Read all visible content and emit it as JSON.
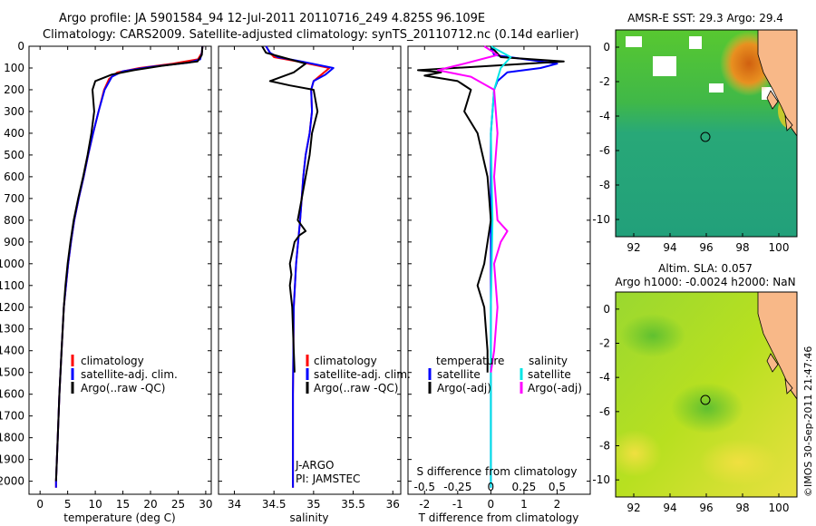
{
  "header": {
    "line1": "Argo profile: JA 5901584_94 12-Jul-2011 20110716_249 4.825S 96.109E",
    "line2": "Climatology: CARS2009. Satellite-adjusted climatology: synTS_20110712.nc (0.14d earlier)"
  },
  "colors": {
    "climatology": "#ff0000",
    "satellite": "#0000ff",
    "argo": "#000000",
    "sal_satellite": "#00e5e5",
    "sal_argo": "#ff00ff",
    "land": "#f8b888"
  },
  "depth_ticks": [
    "0",
    "100",
    "200",
    "300",
    "400",
    "500",
    "600",
    "700",
    "800",
    "900",
    "1000",
    "1100",
    "1200",
    "1300",
    "1400",
    "1500",
    "1600",
    "1700",
    "1800",
    "1900",
    "2000"
  ],
  "chart_data": [
    {
      "id": "temperature",
      "type": "line",
      "xlabel": "temperature (deg C)",
      "ylabel": "",
      "xlim": [
        -2,
        31
      ],
      "ylim": [
        2060,
        0
      ],
      "xticks": [
        "0",
        "5",
        "10",
        "15",
        "20",
        "25",
        "30"
      ],
      "legend": {
        "placement": "lower-center",
        "entries": [
          "climatology",
          "satellite-adj. clim.",
          "Argo(..raw -QC)"
        ]
      },
      "series": [
        {
          "name": "climatology",
          "color": "#ff0000",
          "points": [
            [
              29.4,
              0
            ],
            [
              29.3,
              30
            ],
            [
              28.6,
              60
            ],
            [
              24,
              80
            ],
            [
              18,
              100
            ],
            [
              14,
              120
            ],
            [
              12.5,
              150
            ],
            [
              11.6,
              200
            ],
            [
              10.6,
              300
            ],
            [
              9.6,
              400
            ],
            [
              8.7,
              500
            ],
            [
              7.9,
              600
            ],
            [
              7.0,
              700
            ],
            [
              6.2,
              800
            ],
            [
              5.6,
              900
            ],
            [
              5.1,
              1000
            ],
            [
              4.7,
              1100
            ],
            [
              4.3,
              1200
            ],
            [
              3.9,
              1400
            ],
            [
              3.5,
              1600
            ],
            [
              3.2,
              1800
            ],
            [
              2.9,
              2000
            ],
            [
              2.9,
              2030
            ]
          ]
        },
        {
          "name": "satellite-adj. clim.",
          "color": "#0000ff",
          "points": [
            [
              29.4,
              0
            ],
            [
              29.3,
              30
            ],
            [
              29.0,
              60
            ],
            [
              27,
              75
            ],
            [
              20,
              95
            ],
            [
              15,
              115
            ],
            [
              13,
              140
            ],
            [
              11.7,
              200
            ],
            [
              10.6,
              300
            ],
            [
              9.6,
              400
            ],
            [
              8.7,
              500
            ],
            [
              7.9,
              600
            ],
            [
              7.0,
              700
            ],
            [
              6.2,
              800
            ],
            [
              5.6,
              900
            ],
            [
              5.1,
              1000
            ],
            [
              4.7,
              1100
            ],
            [
              4.3,
              1200
            ],
            [
              3.9,
              1400
            ],
            [
              3.5,
              1600
            ],
            [
              3.2,
              1800
            ],
            [
              2.9,
              2000
            ],
            [
              2.9,
              2030
            ]
          ]
        },
        {
          "name": "Argo(..raw -QC)",
          "color": "#000000",
          "points": [
            [
              29.4,
              0
            ],
            [
              29.3,
              40
            ],
            [
              28.5,
              70
            ],
            [
              22,
              90
            ],
            [
              17,
              110
            ],
            [
              13,
              130
            ],
            [
              10,
              160
            ],
            [
              9.5,
              200
            ],
            [
              9.8,
              300
            ],
            [
              9.3,
              400
            ],
            [
              8.6,
              500
            ],
            [
              7.8,
              600
            ],
            [
              6.9,
              700
            ],
            [
              6.1,
              800
            ],
            [
              5.5,
              900
            ],
            [
              5.0,
              1000
            ],
            [
              4.6,
              1100
            ],
            [
              4.3,
              1200
            ],
            [
              3.9,
              1400
            ],
            [
              3.5,
              1600
            ],
            [
              3.2,
              1800
            ],
            [
              2.9,
              2000
            ]
          ]
        }
      ]
    },
    {
      "id": "salinity",
      "type": "line",
      "xlabel": "salinity",
      "ylabel": "",
      "xlim": [
        33.8,
        36.1
      ],
      "ylim": [
        2060,
        0
      ],
      "xticks": [
        "34",
        "34.5",
        "35",
        "35.5",
        "36"
      ],
      "legend": {
        "placement": "lower-center",
        "entries": [
          "climatology",
          "satellite-adj. clim.",
          "Argo(..raw -QC)"
        ]
      },
      "annotations": [
        "J-ARGO",
        "PI: JAMSTEC"
      ],
      "series": [
        {
          "name": "climatology",
          "color": "#ff0000",
          "points": [
            [
              34.4,
              0
            ],
            [
              34.45,
              30
            ],
            [
              34.5,
              50
            ],
            [
              34.8,
              70
            ],
            [
              35.2,
              100
            ],
            [
              35.1,
              130
            ],
            [
              35.0,
              160
            ],
            [
              34.97,
              200
            ],
            [
              34.98,
              300
            ],
            [
              34.95,
              400
            ],
            [
              34.9,
              500
            ],
            [
              34.87,
              600
            ],
            [
              34.83,
              800
            ],
            [
              34.78,
              1000
            ],
            [
              34.75,
              1200
            ],
            [
              34.74,
              1600
            ],
            [
              34.74,
              2030
            ]
          ]
        },
        {
          "name": "satellite-adj. clim.",
          "color": "#0000ff",
          "points": [
            [
              34.4,
              0
            ],
            [
              34.45,
              30
            ],
            [
              34.55,
              50
            ],
            [
              34.85,
              70
            ],
            [
              35.25,
              100
            ],
            [
              35.15,
              130
            ],
            [
              35.0,
              160
            ],
            [
              34.97,
              200
            ],
            [
              34.98,
              300
            ],
            [
              34.95,
              400
            ],
            [
              34.9,
              500
            ],
            [
              34.87,
              600
            ],
            [
              34.83,
              800
            ],
            [
              34.78,
              1000
            ],
            [
              34.75,
              1200
            ],
            [
              34.74,
              1600
            ],
            [
              34.74,
              2030
            ]
          ]
        },
        {
          "name": "Argo(..raw -QC)",
          "color": "#000000",
          "points": [
            [
              34.35,
              0
            ],
            [
              34.4,
              30
            ],
            [
              34.6,
              50
            ],
            [
              34.9,
              80
            ],
            [
              34.75,
              120
            ],
            [
              34.45,
              160
            ],
            [
              34.7,
              180
            ],
            [
              35.0,
              200
            ],
            [
              35.05,
              300
            ],
            [
              34.98,
              400
            ],
            [
              34.95,
              500
            ],
            [
              34.9,
              600
            ],
            [
              34.85,
              700
            ],
            [
              34.8,
              800
            ],
            [
              34.9,
              850
            ],
            [
              34.82,
              870
            ],
            [
              34.76,
              900
            ],
            [
              34.7,
              1000
            ],
            [
              34.72,
              1050
            ],
            [
              34.7,
              1100
            ],
            [
              34.73,
              1200
            ],
            [
              34.74,
              1300
            ],
            [
              34.75,
              1400
            ],
            [
              34.76,
              1500
            ]
          ]
        }
      ]
    },
    {
      "id": "difference",
      "type": "line",
      "xlabel": "T difference from climatology",
      "xlabel_top": "S difference from climatology",
      "xlim": [
        -2.5,
        3.0
      ],
      "ylim": [
        2060,
        0
      ],
      "xticks": [
        "-2",
        "-1",
        "0",
        "1",
        "2"
      ],
      "xticks_top": [
        "-0.5",
        "-0.25",
        "0",
        "0.25",
        "0.5"
      ],
      "legend": {
        "placement": "lower-center",
        "headers": [
          "temperature",
          "salinity"
        ],
        "entries": [
          "satellite",
          "Argo(-adj)",
          "satellite",
          "Argo(-adj)"
        ]
      },
      "series": [
        {
          "name": "temperature satellite",
          "color": "#0000ff",
          "points": [
            [
              0,
              0
            ],
            [
              0.1,
              40
            ],
            [
              2.0,
              80
            ],
            [
              1.5,
              100
            ],
            [
              0.5,
              120
            ],
            [
              0.2,
              160
            ],
            [
              0.1,
              200
            ],
            [
              0,
              400
            ],
            [
              0,
              2030
            ]
          ]
        },
        {
          "name": "temperature Argo(-adj)",
          "color": "#000000",
          "points": [
            [
              0,
              0
            ],
            [
              0.3,
              50
            ],
            [
              2.2,
              70
            ],
            [
              -2.2,
              110
            ],
            [
              -1.5,
              120
            ],
            [
              -2.0,
              135
            ],
            [
              -1.0,
              160
            ],
            [
              -0.6,
              200
            ],
            [
              -0.8,
              300
            ],
            [
              -0.4,
              400
            ],
            [
              -0.1,
              600
            ],
            [
              0,
              800
            ],
            [
              -0.2,
              1000
            ],
            [
              -0.4,
              1100
            ],
            [
              -0.2,
              1200
            ],
            [
              -0.1,
              1400
            ],
            [
              -0.1,
              1500
            ]
          ]
        },
        {
          "name": "salinity satellite",
          "color": "#00e5e5",
          "points": [
            [
              0,
              0
            ],
            [
              0.6,
              50
            ],
            [
              0.3,
              100
            ],
            [
              0.1,
              200
            ],
            [
              0,
              400
            ],
            [
              0.05,
              800
            ],
            [
              0,
              1200
            ],
            [
              0,
              2030
            ]
          ]
        },
        {
          "name": "salinity Argo(-adj)",
          "color": "#ff00ff",
          "points": [
            [
              -0.2,
              0
            ],
            [
              0.2,
              40
            ],
            [
              -0.8,
              80
            ],
            [
              -1.6,
              110
            ],
            [
              -0.6,
              140
            ],
            [
              0.1,
              200
            ],
            [
              0.2,
              400
            ],
            [
              0.1,
              600
            ],
            [
              0.2,
              800
            ],
            [
              0.5,
              850
            ],
            [
              0.3,
              900
            ],
            [
              0.1,
              1000
            ],
            [
              0.2,
              1200
            ],
            [
              0.1,
              1400
            ],
            [
              0,
              1500
            ]
          ]
        }
      ]
    }
  ],
  "maps": {
    "sst": {
      "title": "AMSR-E SST: 29.3 Argo: 29.4",
      "xticks": [
        "92",
        "94",
        "96",
        "98",
        "100"
      ],
      "yticks": [
        "0",
        "-2",
        "-4",
        "-6",
        "-8",
        "-10"
      ],
      "marker": {
        "lon": 96.109,
        "lat": -4.825
      }
    },
    "sla": {
      "title1": "Altim. SLA: 0.057",
      "title2": "Argo h1000: -0.0024 h2000: NaN",
      "xticks": [
        "92",
        "94",
        "96",
        "98",
        "100"
      ],
      "yticks": [
        "0",
        "-2",
        "-4",
        "-6",
        "-8",
        "-10"
      ],
      "marker": {
        "lon": 96.109,
        "lat": -4.825
      }
    }
  },
  "footer": {
    "stamp": "©IMOS 30-Sep-2011 21:47:46"
  }
}
